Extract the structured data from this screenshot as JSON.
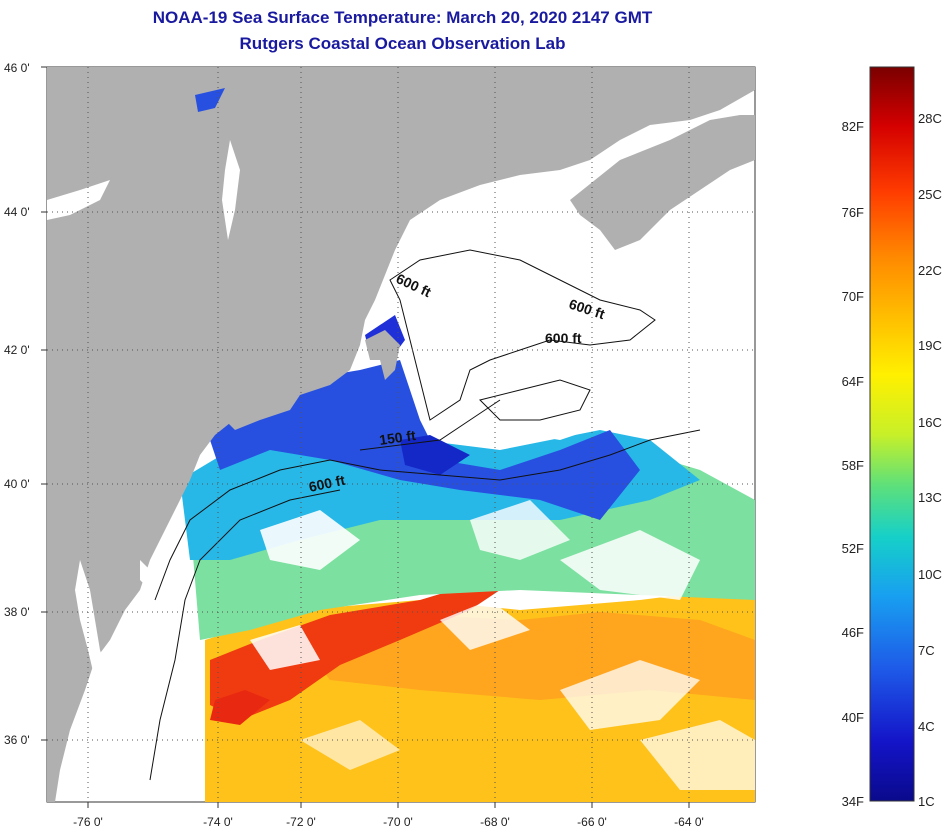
{
  "title": "NOAA-19 Sea Surface Temperature:  March 20, 2020 2147 GMT",
  "subtitle": "Rutgers Coastal Ocean Observation Lab",
  "map": {
    "lon_labels": [
      "-76 0'",
      "-74 0'",
      "-72 0'",
      "-70 0'",
      "-68 0'",
      "-66 0'",
      "-64 0'"
    ],
    "lat_labels": [
      "46 0'",
      "44 0'",
      "42 0'",
      "40 0'",
      "38 0'",
      "36 0'"
    ],
    "contour_labels": [
      "600 ft",
      "600 ft",
      "600 ft",
      "150 ft",
      "600 ft"
    ],
    "land_color": "#b0b0b0",
    "cloud_color": "#ffffff"
  },
  "colorbar": {
    "fahrenheit_labels": [
      "82F",
      "76F",
      "70F",
      "64F",
      "58F",
      "52F",
      "46F",
      "40F",
      "34F"
    ],
    "celsius_labels": [
      "28C",
      "25C",
      "22C",
      "19C",
      "16C",
      "13C",
      "10C",
      "7C",
      "4C",
      "1C"
    ],
    "colors": [
      "#7a0000",
      "#d40000",
      "#ff3c00",
      "#ff8a00",
      "#ffc400",
      "#fff000",
      "#c8f028",
      "#5ee07a",
      "#16d0c8",
      "#18a0f0",
      "#1e5ae8",
      "#1414c8",
      "#0a0a8c"
    ]
  }
}
